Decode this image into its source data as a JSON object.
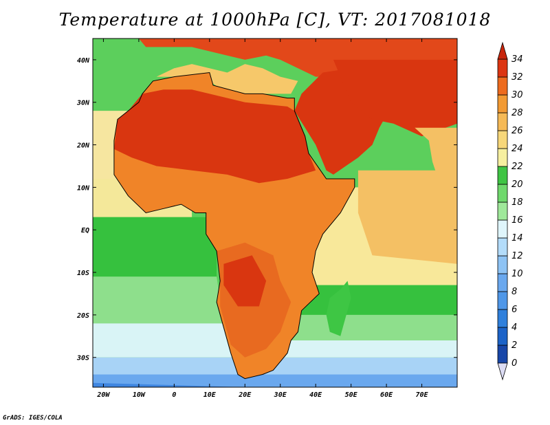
{
  "title": "Temperature at 1000hPa [C], VT: 2017081018",
  "credit": "GrADS: IGES/COLA",
  "map": {
    "lon_range": [
      -23,
      80
    ],
    "lat_range": [
      -37,
      45
    ],
    "lat_ticks": [
      {
        "value": 40,
        "label": "40N"
      },
      {
        "value": 30,
        "label": "30N"
      },
      {
        "value": 20,
        "label": "20N"
      },
      {
        "value": 10,
        "label": "10N"
      },
      {
        "value": 0,
        "label": "EQ"
      },
      {
        "value": -10,
        "label": "10S"
      },
      {
        "value": -20,
        "label": "20S"
      },
      {
        "value": -30,
        "label": "30S"
      }
    ],
    "lon_ticks": [
      {
        "value": -20,
        "label": "20W"
      },
      {
        "value": -10,
        "label": "10W"
      },
      {
        "value": 0,
        "label": "0"
      },
      {
        "value": 10,
        "label": "10E"
      },
      {
        "value": 20,
        "label": "20E"
      },
      {
        "value": 30,
        "label": "30E"
      },
      {
        "value": 40,
        "label": "40E"
      },
      {
        "value": 50,
        "label": "50E"
      },
      {
        "value": 60,
        "label": "60E"
      },
      {
        "value": 70,
        "label": "70E"
      }
    ]
  },
  "colorbar": {
    "levels": [
      "0",
      "2",
      "4",
      "6",
      "8",
      "10",
      "12",
      "14",
      "16",
      "18",
      "20",
      "22",
      "24",
      "26",
      "28",
      "30",
      "32",
      "34"
    ],
    "colors": [
      "#0a1f7a",
      "#1846a8",
      "#1c63c8",
      "#2f80dc",
      "#4f97e8",
      "#6aa8ee",
      "#8ec3f4",
      "#b3dcfa",
      "#dff5fb",
      "#9fe89a",
      "#6fd86c",
      "#3fc444",
      "#f6efa0",
      "#f7d77a",
      "#f5b956",
      "#f29a33",
      "#ed6b1e",
      "#dc3512",
      "#c8250c"
    ]
  },
  "fields": {
    "ocean_n": "#5ccf5c",
    "ocean_eq": "#36c13e",
    "ocean_s1": "#8edf8c",
    "ocean_s2": "#d9f4f6",
    "ocean_s3": "#a8d3f6",
    "ocean_s4": "#6aa8ee",
    "ocean_s5": "#3f86e0",
    "indian_ocean": "#f8e89a",
    "indian_ocean_warm": "#f4c064",
    "atlantic_warm": "#f6e6a0",
    "sahara": "#d93610",
    "sahel": "#f08428",
    "congo": "#ee7a26",
    "southern_africa": "#e86a20",
    "arabia": "#d93610",
    "mediterranean": "#f6c86a",
    "europe": "#e2481a",
    "madagascar": "#3ec644"
  }
}
